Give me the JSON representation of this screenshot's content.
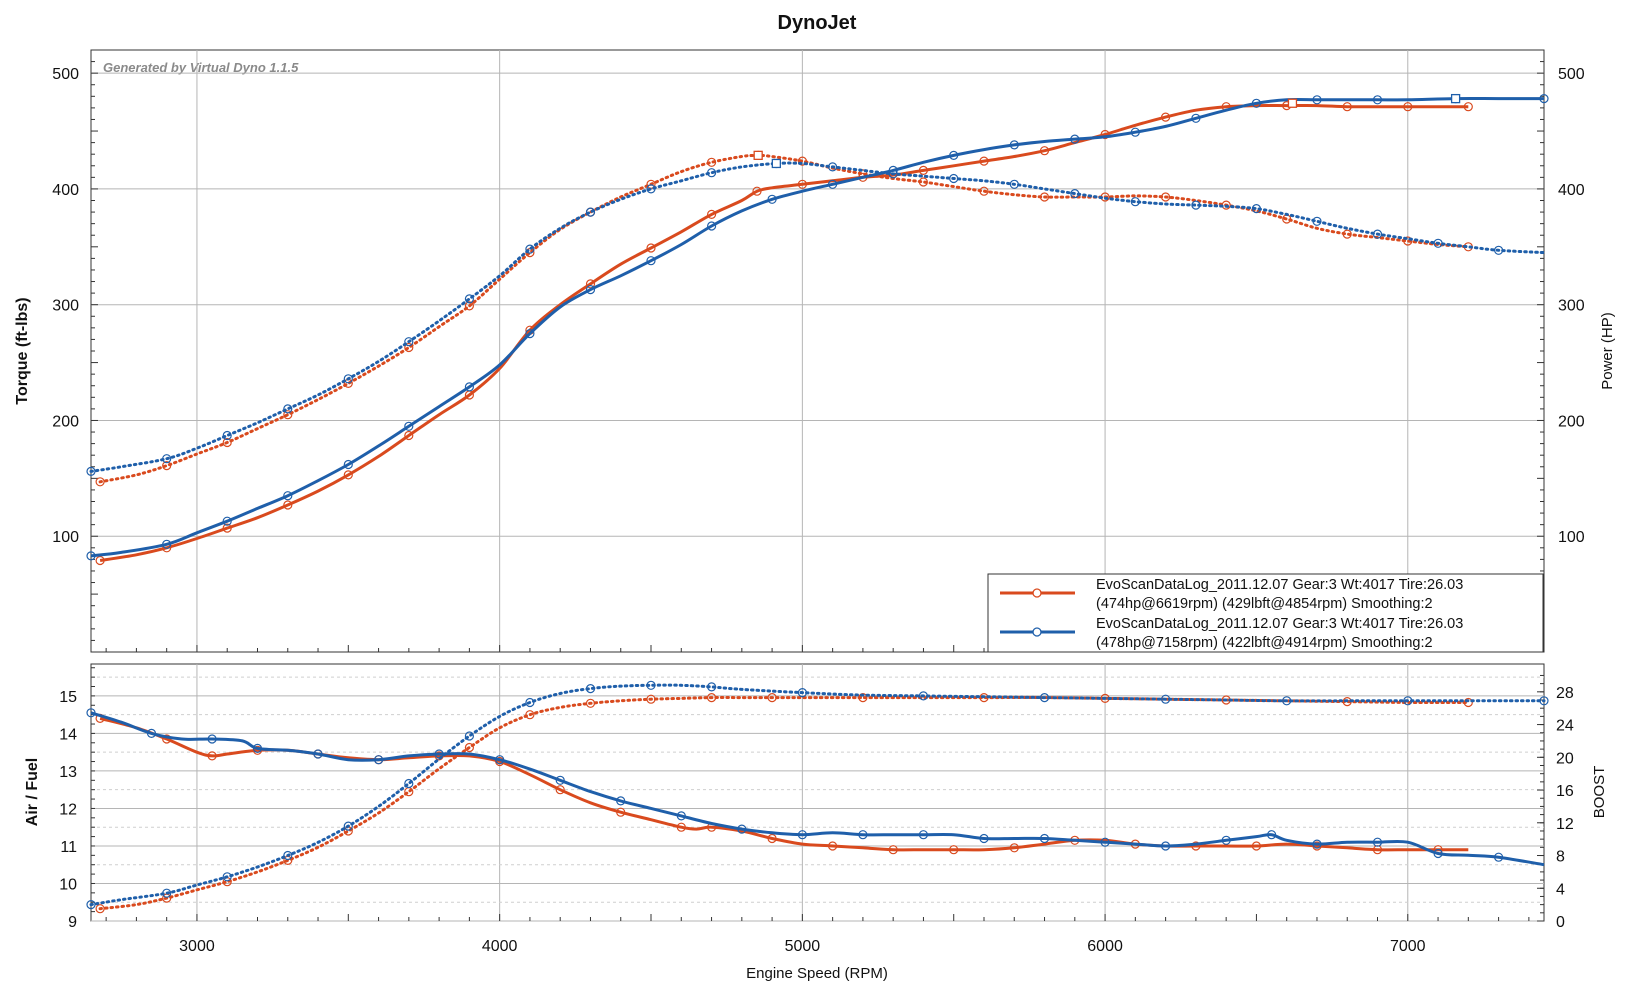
{
  "chart_data": [
    {
      "type": "line",
      "title": "DynoJet",
      "watermark": "Generated by Virtual Dyno 1.1.5",
      "xlabel": "Engine Speed (RPM)",
      "ylabel": "Torque (ft-lbs)",
      "y2label": "Power (HP)",
      "xlim": [
        2650,
        7450
      ],
      "ylim": [
        0,
        520
      ],
      "y2lim": [
        0,
        520
      ],
      "xticks": [
        "3000",
        "4000",
        "5000",
        "6000",
        "7000"
      ],
      "yticks": [
        "100",
        "200",
        "300",
        "400",
        "500"
      ],
      "y2ticks": [
        "100",
        "200",
        "300",
        "400",
        "500"
      ],
      "legend": [
        {
          "line1": "EvoScanDataLog_2011.12.07 Gear:3 Wt:4017 Tire:26.03",
          "line2": "(474hp@6619rpm) (429lbft@4854rpm) Smoothing:2",
          "color": "#d94a1e"
        },
        {
          "line1": "EvoScanDataLog_2011.12.07 Gear:3 Wt:4017 Tire:26.03",
          "line2": "(478hp@7158rpm) (422lbft@4914rpm) Smoothing:2",
          "color": "#1f5faa"
        }
      ],
      "series": [
        {
          "name": "Run 1 Power (HP)",
          "color": "#d94a1e",
          "style": "solid",
          "x": [
            2680,
            2800,
            2900,
            3000,
            3100,
            3200,
            3300,
            3400,
            3500,
            3600,
            3700,
            3800,
            3900,
            4000,
            4100,
            4200,
            4300,
            4400,
            4500,
            4600,
            4700,
            4800,
            4850,
            4900,
            5000,
            5100,
            5200,
            5300,
            5400,
            5500,
            5600,
            5700,
            5800,
            5900,
            6000,
            6100,
            6200,
            6300,
            6400,
            6500,
            6600,
            6700,
            6800,
            6900,
            7000,
            7100,
            7200
          ],
          "y": [
            79,
            84,
            90,
            98,
            107,
            116,
            127,
            139,
            153,
            169,
            187,
            205,
            222,
            245,
            278,
            300,
            318,
            335,
            349,
            363,
            378,
            390,
            398,
            401,
            404,
            407,
            410,
            412,
            416,
            420,
            424,
            428,
            433,
            440,
            447,
            455,
            462,
            468,
            471,
            472,
            472,
            472,
            471,
            471,
            471,
            471,
            471
          ]
        },
        {
          "name": "Run 1 Torque (ft-lbs)",
          "color": "#d94a1e",
          "style": "dotted",
          "x": [
            2680,
            2800,
            2900,
            3000,
            3100,
            3200,
            3300,
            3400,
            3500,
            3600,
            3700,
            3800,
            3900,
            4000,
            4100,
            4200,
            4300,
            4400,
            4500,
            4600,
            4700,
            4800,
            4854,
            4900,
            5000,
            5100,
            5200,
            5300,
            5400,
            5500,
            5600,
            5700,
            5800,
            5900,
            6000,
            6100,
            6200,
            6300,
            6400,
            6500,
            6600,
            6700,
            6800,
            6900,
            7000,
            7100,
            7200
          ],
          "y": [
            147,
            153,
            161,
            171,
            181,
            193,
            205,
            218,
            232,
            247,
            263,
            281,
            299,
            322,
            345,
            365,
            380,
            393,
            404,
            415,
            423,
            428,
            429,
            428,
            424,
            418,
            413,
            409,
            406,
            402,
            398,
            395,
            393,
            393,
            393,
            394,
            393,
            390,
            386,
            381,
            374,
            366,
            361,
            358,
            355,
            352,
            350
          ]
        },
        {
          "name": "Run 2 Power (HP)",
          "color": "#1f5faa",
          "style": "solid",
          "x": [
            2650,
            2750,
            2900,
            3000,
            3100,
            3200,
            3300,
            3400,
            3500,
            3600,
            3700,
            3800,
            3900,
            4000,
            4100,
            4200,
            4300,
            4400,
            4500,
            4600,
            4700,
            4800,
            4900,
            5000,
            5100,
            5200,
            5300,
            5400,
            5500,
            5600,
            5700,
            5800,
            5900,
            6000,
            6100,
            6200,
            6300,
            6400,
            6500,
            6600,
            6700,
            6800,
            6900,
            7000,
            7158,
            7300,
            7450
          ],
          "y": [
            83,
            86,
            93,
            103,
            113,
            124,
            135,
            148,
            162,
            178,
            195,
            212,
            229,
            248,
            275,
            298,
            313,
            325,
            338,
            352,
            368,
            381,
            391,
            398,
            404,
            410,
            416,
            423,
            429,
            434,
            438,
            441,
            443,
            445,
            449,
            454,
            461,
            468,
            474,
            477,
            477,
            477,
            477,
            477,
            478,
            478,
            478
          ]
        },
        {
          "name": "Run 2 Torque (ft-lbs)",
          "color": "#1f5faa",
          "style": "dotted",
          "x": [
            2650,
            2750,
            2900,
            3000,
            3100,
            3200,
            3300,
            3400,
            3500,
            3600,
            3700,
            3800,
            3900,
            4000,
            4100,
            4200,
            4300,
            4400,
            4500,
            4600,
            4700,
            4800,
            4914,
            5000,
            5100,
            5200,
            5300,
            5400,
            5500,
            5600,
            5700,
            5800,
            5900,
            6000,
            6100,
            6200,
            6300,
            6400,
            6500,
            6600,
            6700,
            6800,
            6900,
            7000,
            7100,
            7200,
            7300,
            7450
          ],
          "y": [
            156,
            160,
            167,
            176,
            187,
            198,
            210,
            222,
            236,
            251,
            268,
            286,
            305,
            325,
            348,
            366,
            380,
            391,
            400,
            407,
            414,
            419,
            422,
            422,
            419,
            416,
            413,
            411,
            409,
            407,
            404,
            400,
            396,
            392,
            389,
            387,
            386,
            385,
            383,
            378,
            372,
            366,
            361,
            357,
            353,
            350,
            347,
            345
          ]
        }
      ]
    },
    {
      "type": "line",
      "ylabel": "Air / Fuel",
      "y2label": "BOOST",
      "xlim": [
        2650,
        7450
      ],
      "ylim": [
        9,
        15.85
      ],
      "y2lim": [
        0,
        31.4
      ],
      "yticks": [
        "9",
        "10",
        "11",
        "12",
        "13",
        "14",
        "15"
      ],
      "y2ticks": [
        "0",
        "4",
        "8",
        "12",
        "16",
        "20",
        "24",
        "28"
      ],
      "series": [
        {
          "name": "Run 1 Air/Fuel",
          "color": "#d94a1e",
          "style": "solid",
          "axis": "left",
          "x": [
            2680,
            2800,
            2900,
            3000,
            3050,
            3100,
            3200,
            3300,
            3400,
            3500,
            3600,
            3700,
            3800,
            3900,
            4000,
            4100,
            4200,
            4300,
            4400,
            4500,
            4600,
            4650,
            4700,
            4800,
            4900,
            5000,
            5100,
            5200,
            5300,
            5400,
            5500,
            5600,
            5700,
            5800,
            5900,
            6000,
            6100,
            6200,
            6300,
            6400,
            6500,
            6600,
            6700,
            6800,
            6900,
            7000,
            7100,
            7200
          ],
          "y": [
            14.4,
            14.15,
            13.85,
            13.5,
            13.4,
            13.45,
            13.55,
            13.55,
            13.45,
            13.35,
            13.3,
            13.35,
            13.4,
            13.4,
            13.25,
            12.9,
            12.5,
            12.15,
            11.9,
            11.7,
            11.5,
            11.45,
            11.5,
            11.4,
            11.2,
            11.05,
            11.0,
            10.95,
            10.9,
            10.9,
            10.9,
            10.9,
            10.95,
            11.05,
            11.15,
            11.15,
            11.05,
            11.0,
            11.0,
            11.0,
            11.0,
            11.05,
            11.0,
            10.95,
            10.9,
            10.9,
            10.9,
            10.9
          ]
        },
        {
          "name": "Run 1 Boost",
          "color": "#d94a1e",
          "style": "dotted",
          "axis": "right",
          "x": [
            2680,
            2800,
            2900,
            3000,
            3100,
            3200,
            3300,
            3400,
            3500,
            3600,
            3700,
            3800,
            3900,
            4000,
            4100,
            4200,
            4300,
            4400,
            4500,
            4600,
            4700,
            4800,
            4900,
            5000,
            5200,
            5400,
            5600,
            5800,
            6000,
            6200,
            6400,
            6600,
            6800,
            7000,
            7200
          ],
          "y": [
            1.5,
            2.0,
            2.8,
            3.8,
            4.8,
            6.0,
            7.4,
            9.0,
            11.0,
            13.2,
            15.8,
            18.6,
            21.2,
            23.6,
            25.2,
            26.1,
            26.6,
            26.9,
            27.1,
            27.2,
            27.3,
            27.3,
            27.3,
            27.3,
            27.3,
            27.3,
            27.3,
            27.3,
            27.2,
            27.1,
            27.0,
            26.9,
            26.8,
            26.7,
            26.7
          ]
        },
        {
          "name": "Run 2 Air/Fuel",
          "color": "#1f5faa",
          "style": "solid",
          "axis": "left",
          "x": [
            2650,
            2750,
            2850,
            2950,
            3050,
            3150,
            3200,
            3300,
            3400,
            3500,
            3600,
            3700,
            3800,
            3900,
            4000,
            4100,
            4200,
            4300,
            4400,
            4500,
            4600,
            4700,
            4800,
            4900,
            5000,
            5100,
            5200,
            5300,
            5400,
            5500,
            5600,
            5700,
            5800,
            5900,
            6000,
            6100,
            6200,
            6300,
            6400,
            6500,
            6550,
            6600,
            6700,
            6800,
            6900,
            7000,
            7100,
            7200,
            7300,
            7450
          ],
          "y": [
            14.55,
            14.3,
            14.0,
            13.85,
            13.85,
            13.8,
            13.6,
            13.55,
            13.45,
            13.3,
            13.3,
            13.4,
            13.45,
            13.45,
            13.3,
            13.05,
            12.75,
            12.45,
            12.2,
            12.0,
            11.8,
            11.6,
            11.45,
            11.35,
            11.3,
            11.35,
            11.3,
            11.3,
            11.3,
            11.3,
            11.2,
            11.2,
            11.2,
            11.15,
            11.1,
            11.05,
            11.0,
            11.05,
            11.15,
            11.25,
            11.3,
            11.15,
            11.05,
            11.1,
            11.1,
            11.1,
            10.8,
            10.75,
            10.7,
            10.5
          ]
        },
        {
          "name": "Run 2 Boost",
          "color": "#1f5faa",
          "style": "dotted",
          "axis": "right",
          "x": [
            2650,
            2750,
            2900,
            3000,
            3100,
            3200,
            3300,
            3400,
            3500,
            3600,
            3700,
            3800,
            3900,
            4000,
            4100,
            4200,
            4300,
            4400,
            4500,
            4600,
            4700,
            4800,
            5000,
            5200,
            5400,
            5600,
            5800,
            6000,
            6200,
            6400,
            6600,
            6800,
            7000,
            7200,
            7450
          ],
          "y": [
            2.0,
            2.6,
            3.4,
            4.4,
            5.4,
            6.6,
            8.0,
            9.6,
            11.6,
            14.0,
            16.8,
            19.8,
            22.6,
            25.0,
            26.7,
            27.8,
            28.4,
            28.7,
            28.8,
            28.8,
            28.6,
            28.3,
            27.9,
            27.6,
            27.5,
            27.4,
            27.3,
            27.2,
            27.1,
            27.0,
            26.9,
            26.9,
            26.9,
            26.9,
            26.9
          ]
        }
      ]
    }
  ]
}
